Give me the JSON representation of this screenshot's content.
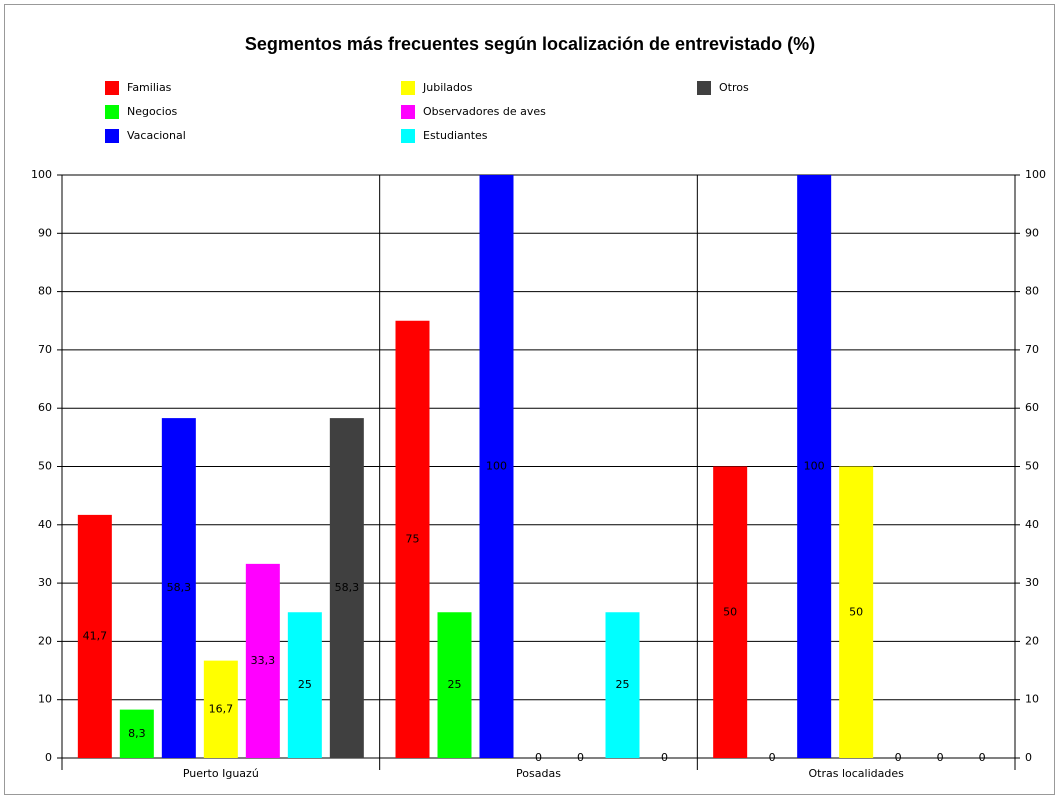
{
  "chart_data": {
    "type": "bar",
    "title": "Segmentos más frecuentes según localización de entrevistado (%)",
    "categories": [
      "Puerto Iguazú",
      "Posadas",
      "Otras localidades"
    ],
    "series": [
      {
        "name": "Familias",
        "color": "#ff0000",
        "values": [
          41.7,
          75,
          50
        ],
        "value_labels": [
          "41,7",
          "75",
          "50"
        ]
      },
      {
        "name": "Negocios",
        "color": "#00ff00",
        "values": [
          8.3,
          25,
          0
        ],
        "value_labels": [
          "8,3",
          "25",
          "0"
        ]
      },
      {
        "name": "Vacacional",
        "color": "#0000ff",
        "values": [
          58.3,
          100,
          100
        ],
        "value_labels": [
          "58,3",
          "100",
          "100"
        ]
      },
      {
        "name": "Jubilados",
        "color": "#ffff00",
        "values": [
          16.7,
          0,
          50
        ],
        "value_labels": [
          "16,7",
          "0",
          "50"
        ]
      },
      {
        "name": "Observadores de aves",
        "color": "#ff00ff",
        "values": [
          33.3,
          0,
          0
        ],
        "value_labels": [
          "33,3",
          "0",
          "0"
        ]
      },
      {
        "name": "Estudiantes",
        "color": "#00ffff",
        "values": [
          25,
          25,
          0
        ],
        "value_labels": [
          "25",
          "25",
          "0"
        ]
      },
      {
        "name": "Otros",
        "color": "#404040",
        "values": [
          58.3,
          0,
          0
        ],
        "value_labels": [
          "58,3",
          "0",
          "0"
        ]
      }
    ],
    "ylim": [
      0,
      100
    ],
    "yticks": [
      0,
      10,
      20,
      30,
      40,
      50,
      60,
      70,
      80,
      90,
      100
    ],
    "grid": true
  }
}
